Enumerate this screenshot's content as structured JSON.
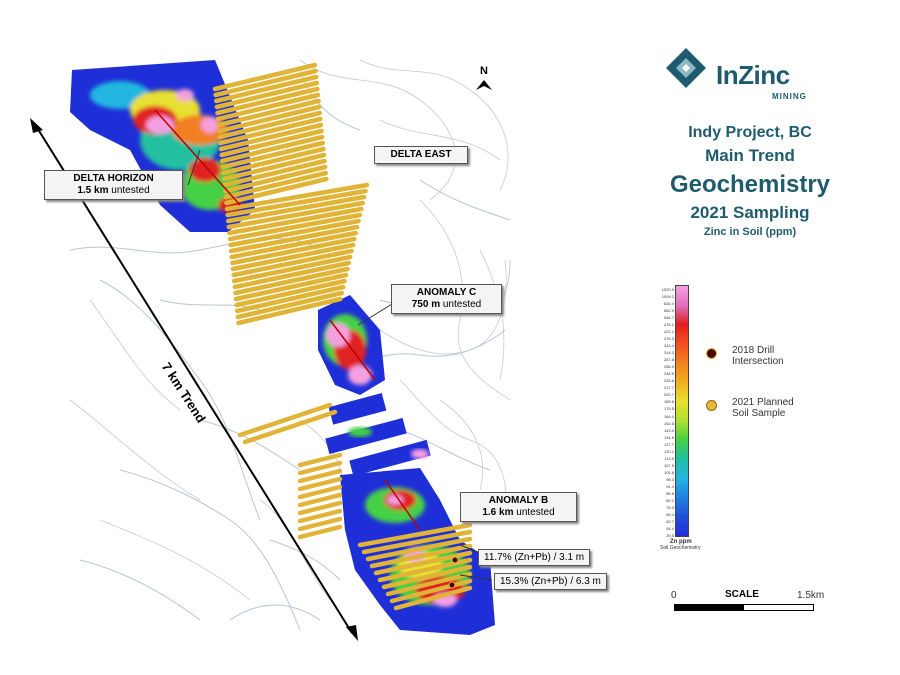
{
  "north_label": "N",
  "trend_label": "7 km Trend",
  "callouts": {
    "delta_horizon": {
      "name": "DELTA HORIZON",
      "length": "1.5 km",
      "status": "untested"
    },
    "delta_east": {
      "name": "DELTA EAST"
    },
    "anomaly_c": {
      "name": "ANOMALY C",
      "length": "750 m",
      "status": "untested"
    },
    "anomaly_b": {
      "name": "ANOMALY B",
      "length": "1.6 km",
      "status": "untested"
    }
  },
  "intersections": [
    {
      "label": "11.7% (Zn+Pb) / 3.1 m"
    },
    {
      "label": "15.3% (Zn+Pb) / 6.3 m"
    }
  ],
  "logo": {
    "name": "InZinc",
    "sub": "MINING"
  },
  "titles": {
    "line1": "Indy Project, BC",
    "line2": "Main Trend",
    "line3": "Geochemistry",
    "line4": "2021 Sampling",
    "line5": "Zinc in Soil (ppm)"
  },
  "legend": {
    "ticks": [
      "1520.0",
      "1094.2",
      "826.0",
      "682.9",
      "546.7",
      "476.1",
      "422.1",
      "376.3",
      "343.4",
      "314.3",
      "287.8",
      "266.3",
      "248.5",
      "233.6",
      "217.7",
      "202.7",
      "189.6",
      "175.5",
      "164.0",
      "152.6",
      "143.0",
      "134.6",
      "127.7",
      "120.1",
      "113.5",
      "107.5",
      "101.8",
      "96.3",
      "91.4",
      "85.6",
      "80.2",
      "75.0",
      "69.4",
      "62.7",
      "54.4",
      "39.5"
    ],
    "unit": "Zn ppm",
    "unit_sub": "Soil Geochemistry",
    "drill_label_1": "2018 Drill",
    "drill_label_2": "Intersection",
    "soil_label_1": "2021 Planned",
    "soil_label_2": "Soil Sample",
    "drill_color": "#4a0000",
    "soil_color": "#e8b838"
  },
  "scale": {
    "start": "0",
    "title": "SCALE",
    "end": "1.5km"
  }
}
